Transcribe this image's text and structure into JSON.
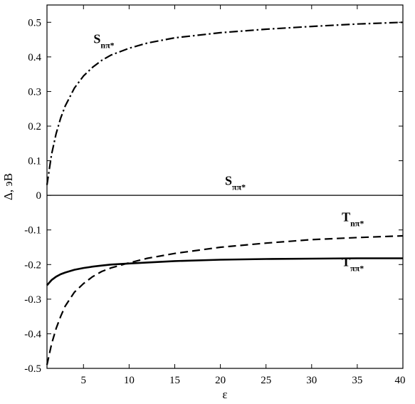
{
  "chart_data": {
    "type": "line",
    "xlabel": "ε",
    "ylabel": "Δ, эВ",
    "xlim": [
      1,
      40
    ],
    "ylim": [
      -0.5,
      0.55
    ],
    "xticks": [
      5,
      10,
      15,
      20,
      25,
      30,
      35,
      40
    ],
    "yticks": [
      -0.5,
      -0.4,
      -0.3,
      -0.2,
      -0.1,
      0,
      0.1,
      0.2,
      0.3,
      0.4,
      0.5
    ],
    "grid": false,
    "series": [
      {
        "name": "Snπ*",
        "main": "S",
        "sub": "nπ*",
        "style": "dashdot",
        "color": "#000000",
        "x": [
          1.0,
          1.5,
          2.0,
          2.5,
          3.0,
          4.0,
          5.0,
          6.0,
          7.0,
          8.0,
          10.0,
          12.0,
          15.0,
          20.0,
          25.0,
          30.0,
          35.0,
          40.0
        ],
        "y": [
          0.03,
          0.118,
          0.178,
          0.223,
          0.258,
          0.31,
          0.345,
          0.37,
          0.39,
          0.405,
          0.425,
          0.44,
          0.455,
          0.47,
          0.48,
          0.488,
          0.495,
          0.5
        ]
      },
      {
        "name": "Sππ*",
        "main": "S",
        "sub": "ππ*",
        "style": "solid-thin",
        "color": "#000000",
        "x": [
          1.0,
          40.0
        ],
        "y": [
          0.0,
          0.0
        ]
      },
      {
        "name": "Tnπ*",
        "main": "T",
        "sub": "nπ*",
        "style": "dashed",
        "color": "#000000",
        "x": [
          1.0,
          1.5,
          2.0,
          2.5,
          3.0,
          4.0,
          5.0,
          6.0,
          7.0,
          8.0,
          10.0,
          12.0,
          15.0,
          20.0,
          25.0,
          30.0,
          35.0,
          40.0
        ],
        "y": [
          -0.49,
          -0.43,
          -0.385,
          -0.35,
          -0.32,
          -0.28,
          -0.255,
          -0.235,
          -0.22,
          -0.21,
          -0.195,
          -0.182,
          -0.168,
          -0.15,
          -0.138,
          -0.128,
          -0.122,
          -0.117
        ]
      },
      {
        "name": "Tππ*",
        "main": "T",
        "sub": "ππ*",
        "style": "solid-thick",
        "color": "#000000",
        "x": [
          1.0,
          1.5,
          2.0,
          2.5,
          3.0,
          4.0,
          5.0,
          6.0,
          7.0,
          8.0,
          10.0,
          12.0,
          15.0,
          20.0,
          25.0,
          30.0,
          35.0,
          40.0
        ],
        "y": [
          -0.26,
          -0.245,
          -0.235,
          -0.228,
          -0.223,
          -0.215,
          -0.21,
          -0.206,
          -0.203,
          -0.2,
          -0.197,
          -0.194,
          -0.19,
          -0.186,
          -0.184,
          -0.183,
          -0.182,
          -0.182
        ]
      }
    ],
    "annotations": [
      {
        "series": "Snπ*",
        "main": "S",
        "sub": "nπ*",
        "x": 6.1,
        "y": 0.44
      },
      {
        "series": "Sππ*",
        "main": "S",
        "sub": "ππ*",
        "x": 20.5,
        "y": 0.03
      },
      {
        "series": "Tnπ*",
        "main": "T",
        "sub": "nπ*",
        "x": 33.3,
        "y": -0.075
      },
      {
        "series": "Tππ*",
        "main": "T",
        "sub": "ππ*",
        "x": 33.3,
        "y": -0.205
      }
    ]
  }
}
